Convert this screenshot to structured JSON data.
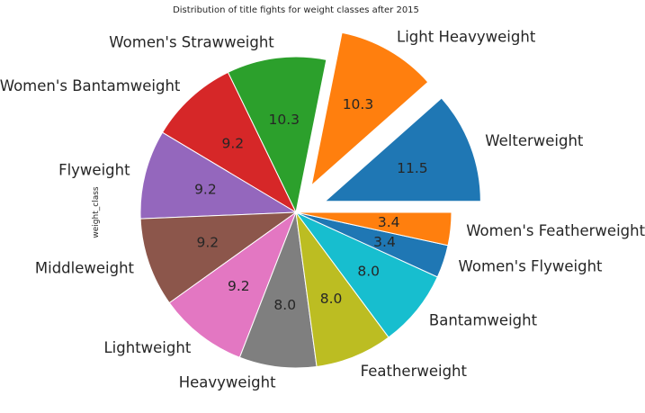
{
  "chart_data": {
    "type": "pie",
    "title": "Distribution of title fights for weight classes after 2015",
    "ylabel": "weight_class",
    "categories": [
      "Welterweight",
      "Light Heavyweight",
      "Women's Strawweight",
      "Women's Bantamweight",
      "Flyweight",
      "Middleweight",
      "Lightweight",
      "Heavyweight",
      "Featherweight",
      "Bantamweight",
      "Women's Flyweight",
      "Women's Featherweight"
    ],
    "values": [
      11.5,
      10.3,
      10.3,
      9.2,
      9.2,
      9.2,
      9.2,
      8.0,
      8.0,
      8.0,
      3.4,
      3.4
    ],
    "value_labels": [
      "11.5",
      "10.3",
      "10.3",
      "9.2",
      "9.2",
      "9.2",
      "9.2",
      "8.0",
      "8.0",
      "8.0",
      "3.4",
      "3.4"
    ],
    "colors": [
      "#1f77b4",
      "#ff7f0e",
      "#2ca02c",
      "#d62728",
      "#9467bd",
      "#8c564b",
      "#e377c2",
      "#7f7f7f",
      "#bcbd22",
      "#17becf",
      "#1f77b4",
      "#ff7f0e"
    ],
    "exploded": [
      true,
      true,
      false,
      false,
      false,
      false,
      false,
      false,
      false,
      false,
      false,
      false
    ],
    "start_angle_deg": 0,
    "direction": "counterclockwise"
  }
}
